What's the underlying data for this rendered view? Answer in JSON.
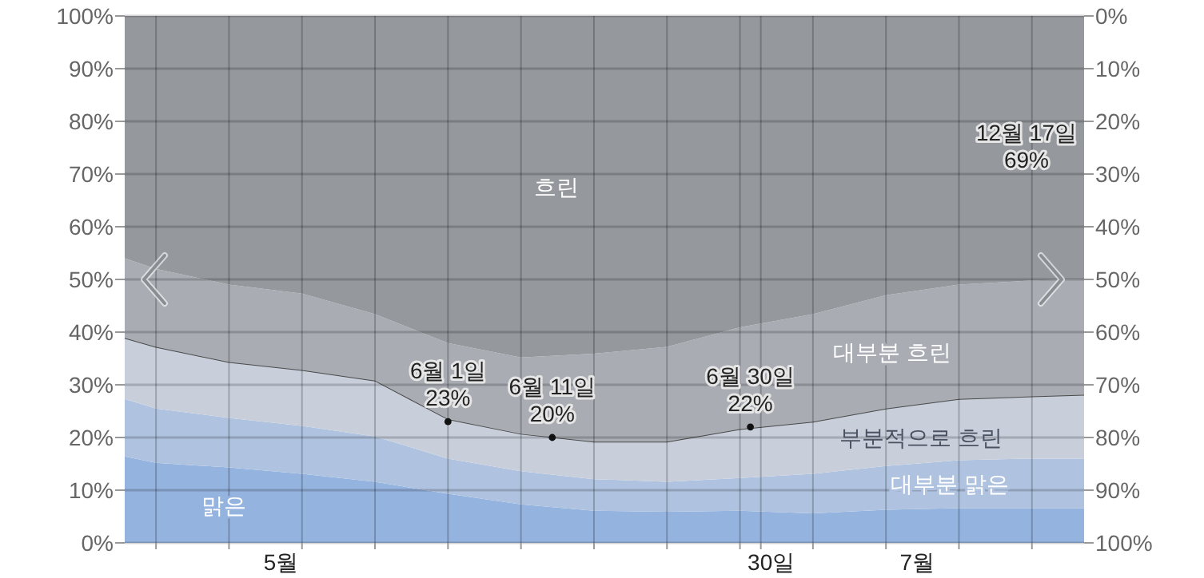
{
  "chart_data": {
    "type": "area",
    "stacked": true,
    "grid": true,
    "xlim": [
      "--05-01",
      "--08-01"
    ],
    "x": [
      "--05-01",
      "--05-04",
      "--05-11",
      "--05-18",
      "--05-25",
      "--06-01",
      "--06-08",
      "--06-15",
      "--06-22",
      "--06-29",
      "--07-06",
      "--07-13",
      "--07-20",
      "--07-27",
      "--08-01"
    ],
    "xticks": [
      {
        "value": "--05-04",
        "label": null
      },
      {
        "value": "--05-11",
        "label": null
      },
      {
        "value": "--05-16",
        "label": "5월"
      },
      {
        "value": "--05-18",
        "label": null
      },
      {
        "value": "--05-25",
        "label": null
      },
      {
        "value": "--06-01",
        "label": null
      },
      {
        "value": "--06-08",
        "label": null
      },
      {
        "value": "--06-15",
        "label": null
      },
      {
        "value": "--06-22",
        "label": null
      },
      {
        "value": "--06-29",
        "label": null
      },
      {
        "value": "--07-01",
        "label": null
      },
      {
        "value": "--07-02",
        "label": "30일"
      },
      {
        "value": "--07-06",
        "label": null
      },
      {
        "value": "--07-13",
        "label": null
      },
      {
        "value": "--07-16",
        "label": "7월"
      },
      {
        "value": "--07-20",
        "label": null
      },
      {
        "value": "--07-27",
        "label": null
      }
    ],
    "ylim": [
      0,
      100
    ],
    "yticks": [
      {
        "value": 0,
        "label": "0%"
      },
      {
        "value": 10,
        "label": "10%"
      },
      {
        "value": 20,
        "label": "20%"
      },
      {
        "value": 30,
        "label": "30%"
      },
      {
        "value": 40,
        "label": "40%"
      },
      {
        "value": 50,
        "label": "50%"
      },
      {
        "value": 60,
        "label": "60%"
      },
      {
        "value": 70,
        "label": "70%"
      },
      {
        "value": 80,
        "label": "80%"
      },
      {
        "value": 90,
        "label": "90%"
      },
      {
        "value": 100,
        "label": "100%"
      }
    ],
    "y2lim": [
      100,
      0
    ],
    "y2ticks": [
      {
        "value": 0,
        "label": "0%"
      },
      {
        "value": 10,
        "label": "10%"
      },
      {
        "value": 20,
        "label": "20%"
      },
      {
        "value": 30,
        "label": "30%"
      },
      {
        "value": 40,
        "label": "40%"
      },
      {
        "value": 50,
        "label": "50%"
      },
      {
        "value": 60,
        "label": "60%"
      },
      {
        "value": 70,
        "label": "70%"
      },
      {
        "value": 80,
        "label": "80%"
      },
      {
        "value": 90,
        "label": "90%"
      },
      {
        "value": 100,
        "label": "100%"
      }
    ],
    "series": [
      {
        "name": "맑은",
        "color": "#94b3df",
        "values": [
          16.4,
          15.2,
          14.3,
          13.1,
          11.6,
          9.3,
          7.3,
          6.1,
          5.9,
          6.1,
          5.6,
          6.3,
          6.6,
          6.6,
          6.6
        ]
      },
      {
        "name": "대부분 맑은",
        "color": "#afc3e0",
        "values": [
          10.9,
          10.3,
          9.4,
          9.1,
          8.6,
          6.7,
          6.3,
          6.0,
          5.7,
          6.2,
          7.5,
          8.3,
          9.1,
          9.4,
          9.4
        ]
      },
      {
        "name": "부분적으로 흐린",
        "color": "#c8cfdb",
        "values": [
          11.6,
          11.7,
          10.6,
          10.6,
          10.6,
          7.5,
          7.1,
          7.1,
          7.6,
          9.3,
          9.9,
          10.9,
          11.6,
          11.8,
          12.1
        ]
      },
      {
        "name": "대부분 흐린",
        "color": "#a9acb3",
        "values": [
          15.1,
          14.8,
          14.7,
          14.5,
          12.6,
          14.4,
          14.5,
          16.7,
          18.0,
          19.3,
          20.4,
          21.5,
          21.7,
          22.0,
          21.9
        ]
      },
      {
        "name": "흐린",
        "color": "#95989d",
        "values": [
          46,
          48,
          51,
          52.7,
          56.6,
          62.1,
          64.8,
          64.1,
          62.8,
          59.1,
          56.6,
          53,
          51,
          50.2,
          50
        ]
      }
    ],
    "annotations": [
      {
        "text": "6월 1일\n23%",
        "x": "--06-01",
        "y": 23
      },
      {
        "text": "6월 11일\n20%",
        "x": "--06-11",
        "y": 20
      },
      {
        "text": "6월 30일\n22%",
        "x": "--06-30",
        "y": 22
      },
      "12월 17일\n69%"
    ]
  }
}
